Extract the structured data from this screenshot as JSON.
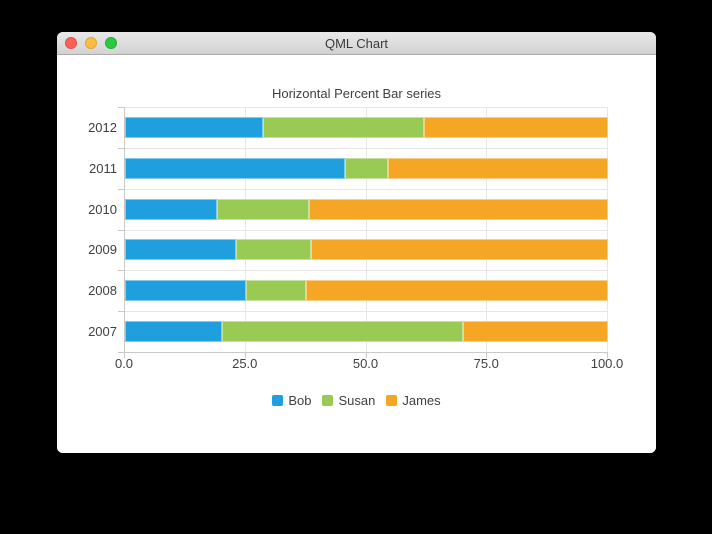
{
  "window": {
    "title": "QML Chart",
    "traffic_lights": [
      {
        "name": "close",
        "color": "#fc5f56"
      },
      {
        "name": "minimize",
        "color": "#fdbd3e"
      },
      {
        "name": "zoom",
        "color": "#2ac93f"
      }
    ]
  },
  "chart_data": {
    "type": "bar",
    "variant": "horizontal-percent-stacked",
    "title": "Horizontal Percent Bar series",
    "categories": [
      "2012",
      "2011",
      "2010",
      "2009",
      "2008",
      "2007"
    ],
    "series": [
      {
        "name": "Bob",
        "color": "#209fdf",
        "values": [
          6,
          5,
          4,
          3,
          2,
          2
        ]
      },
      {
        "name": "Susan",
        "color": "#99ca53",
        "values": [
          7,
          1,
          4,
          2,
          1,
          5
        ]
      },
      {
        "name": "James",
        "color": "#f6a625",
        "values": [
          8,
          5,
          13,
          8,
          5,
          3
        ]
      }
    ],
    "row_percentages": [
      [
        28.57,
        33.33,
        38.1
      ],
      [
        45.45,
        9.09,
        45.45
      ],
      [
        19.05,
        19.05,
        61.9
      ],
      [
        23.08,
        15.38,
        61.54
      ],
      [
        25.0,
        12.5,
        62.5
      ],
      [
        20.0,
        50.0,
        30.0
      ]
    ],
    "x_ticks": [
      0,
      25,
      50,
      75,
      100
    ],
    "x_tick_labels": [
      "0.0",
      "25.0",
      "50.0",
      "75.0",
      "100.0"
    ],
    "xlim": [
      0,
      100
    ],
    "grid": true,
    "legend_position": "bottom"
  },
  "colors": {
    "text": "#404044",
    "gridline": "#e7e7e7",
    "axis_line": "#c9c9c9"
  }
}
